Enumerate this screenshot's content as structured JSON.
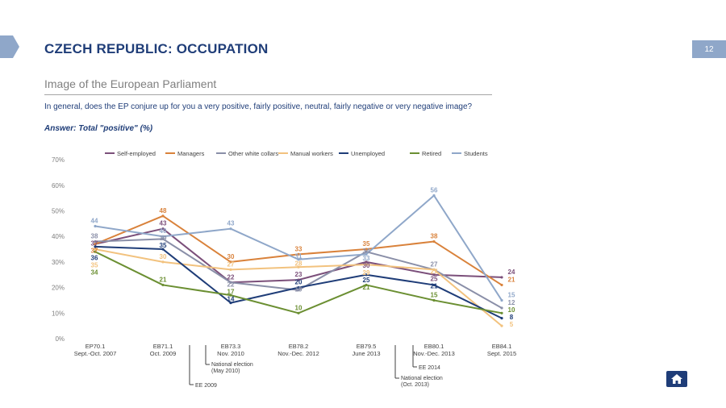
{
  "header": {
    "title": "CZECH REPUBLIC: OCCUPATION",
    "page_number": "12",
    "subtitle": "Image of the European Parliament",
    "question": "In general, does the EP conjure up for you a very positive, fairly positive, neutral, fairly negative or very negative image?",
    "answer": "Answer: Total \"positive\" (%)"
  },
  "icons": {
    "home": "home-icon",
    "nav": "nav-tab-arrow"
  },
  "chart_data": {
    "type": "line",
    "ylim": [
      0,
      70
    ],
    "yticks": [
      "0%",
      "10%",
      "20%",
      "30%",
      "40%",
      "50%",
      "60%",
      "70%"
    ],
    "grid": false,
    "legend_position": "top",
    "categories": [
      [
        "EP70.1",
        "Sept.-Oct. 2007"
      ],
      [
        "EB71.1",
        "Oct. 2009"
      ],
      [
        "EB73.3",
        "Nov. 2010"
      ],
      [
        "EB78.2",
        "Nov.-Dec. 2012"
      ],
      [
        "EB79.5",
        "June 2013"
      ],
      [
        "EB80.1",
        "Nov.-Dec. 2013"
      ],
      [
        "EB84.1",
        "Sept. 2015"
      ]
    ],
    "series": [
      {
        "name": "Self-employed",
        "color": "#7b4f7a",
        "values": [
          37,
          43,
          22,
          23,
          30,
          25,
          24
        ]
      },
      {
        "name": "Managers",
        "color": "#d9823b",
        "values": [
          37,
          48,
          30,
          33,
          35,
          38,
          21
        ]
      },
      {
        "name": "Other white collars",
        "color": "#8a8fa8",
        "values": [
          38,
          39,
          22,
          19,
          34,
          27,
          12
        ]
      },
      {
        "name": "Manual workers",
        "color": "#f2c27e",
        "values": [
          35,
          30,
          27,
          28,
          29,
          27,
          5
        ]
      },
      {
        "name": "Unemployed",
        "color": "#1f3d78",
        "values": [
          36,
          35,
          14,
          20,
          25,
          21,
          8
        ]
      },
      {
        "name": "Retired",
        "color": "#6b8f32",
        "values": [
          34,
          21,
          17,
          10,
          21,
          15,
          10
        ]
      },
      {
        "name": "Students",
        "color": "#8fa7c9",
        "values": [
          44,
          40,
          43,
          31,
          33,
          56,
          15
        ]
      }
    ],
    "annotations": [
      {
        "text": "National election (May 2010)",
        "after_category": 1
      },
      {
        "text": "EE 2009",
        "after_category": 1
      },
      {
        "text": "National election (Oct. 2013)",
        "after_category": 4
      },
      {
        "text": "EE 2014",
        "after_category": 5
      }
    ]
  }
}
